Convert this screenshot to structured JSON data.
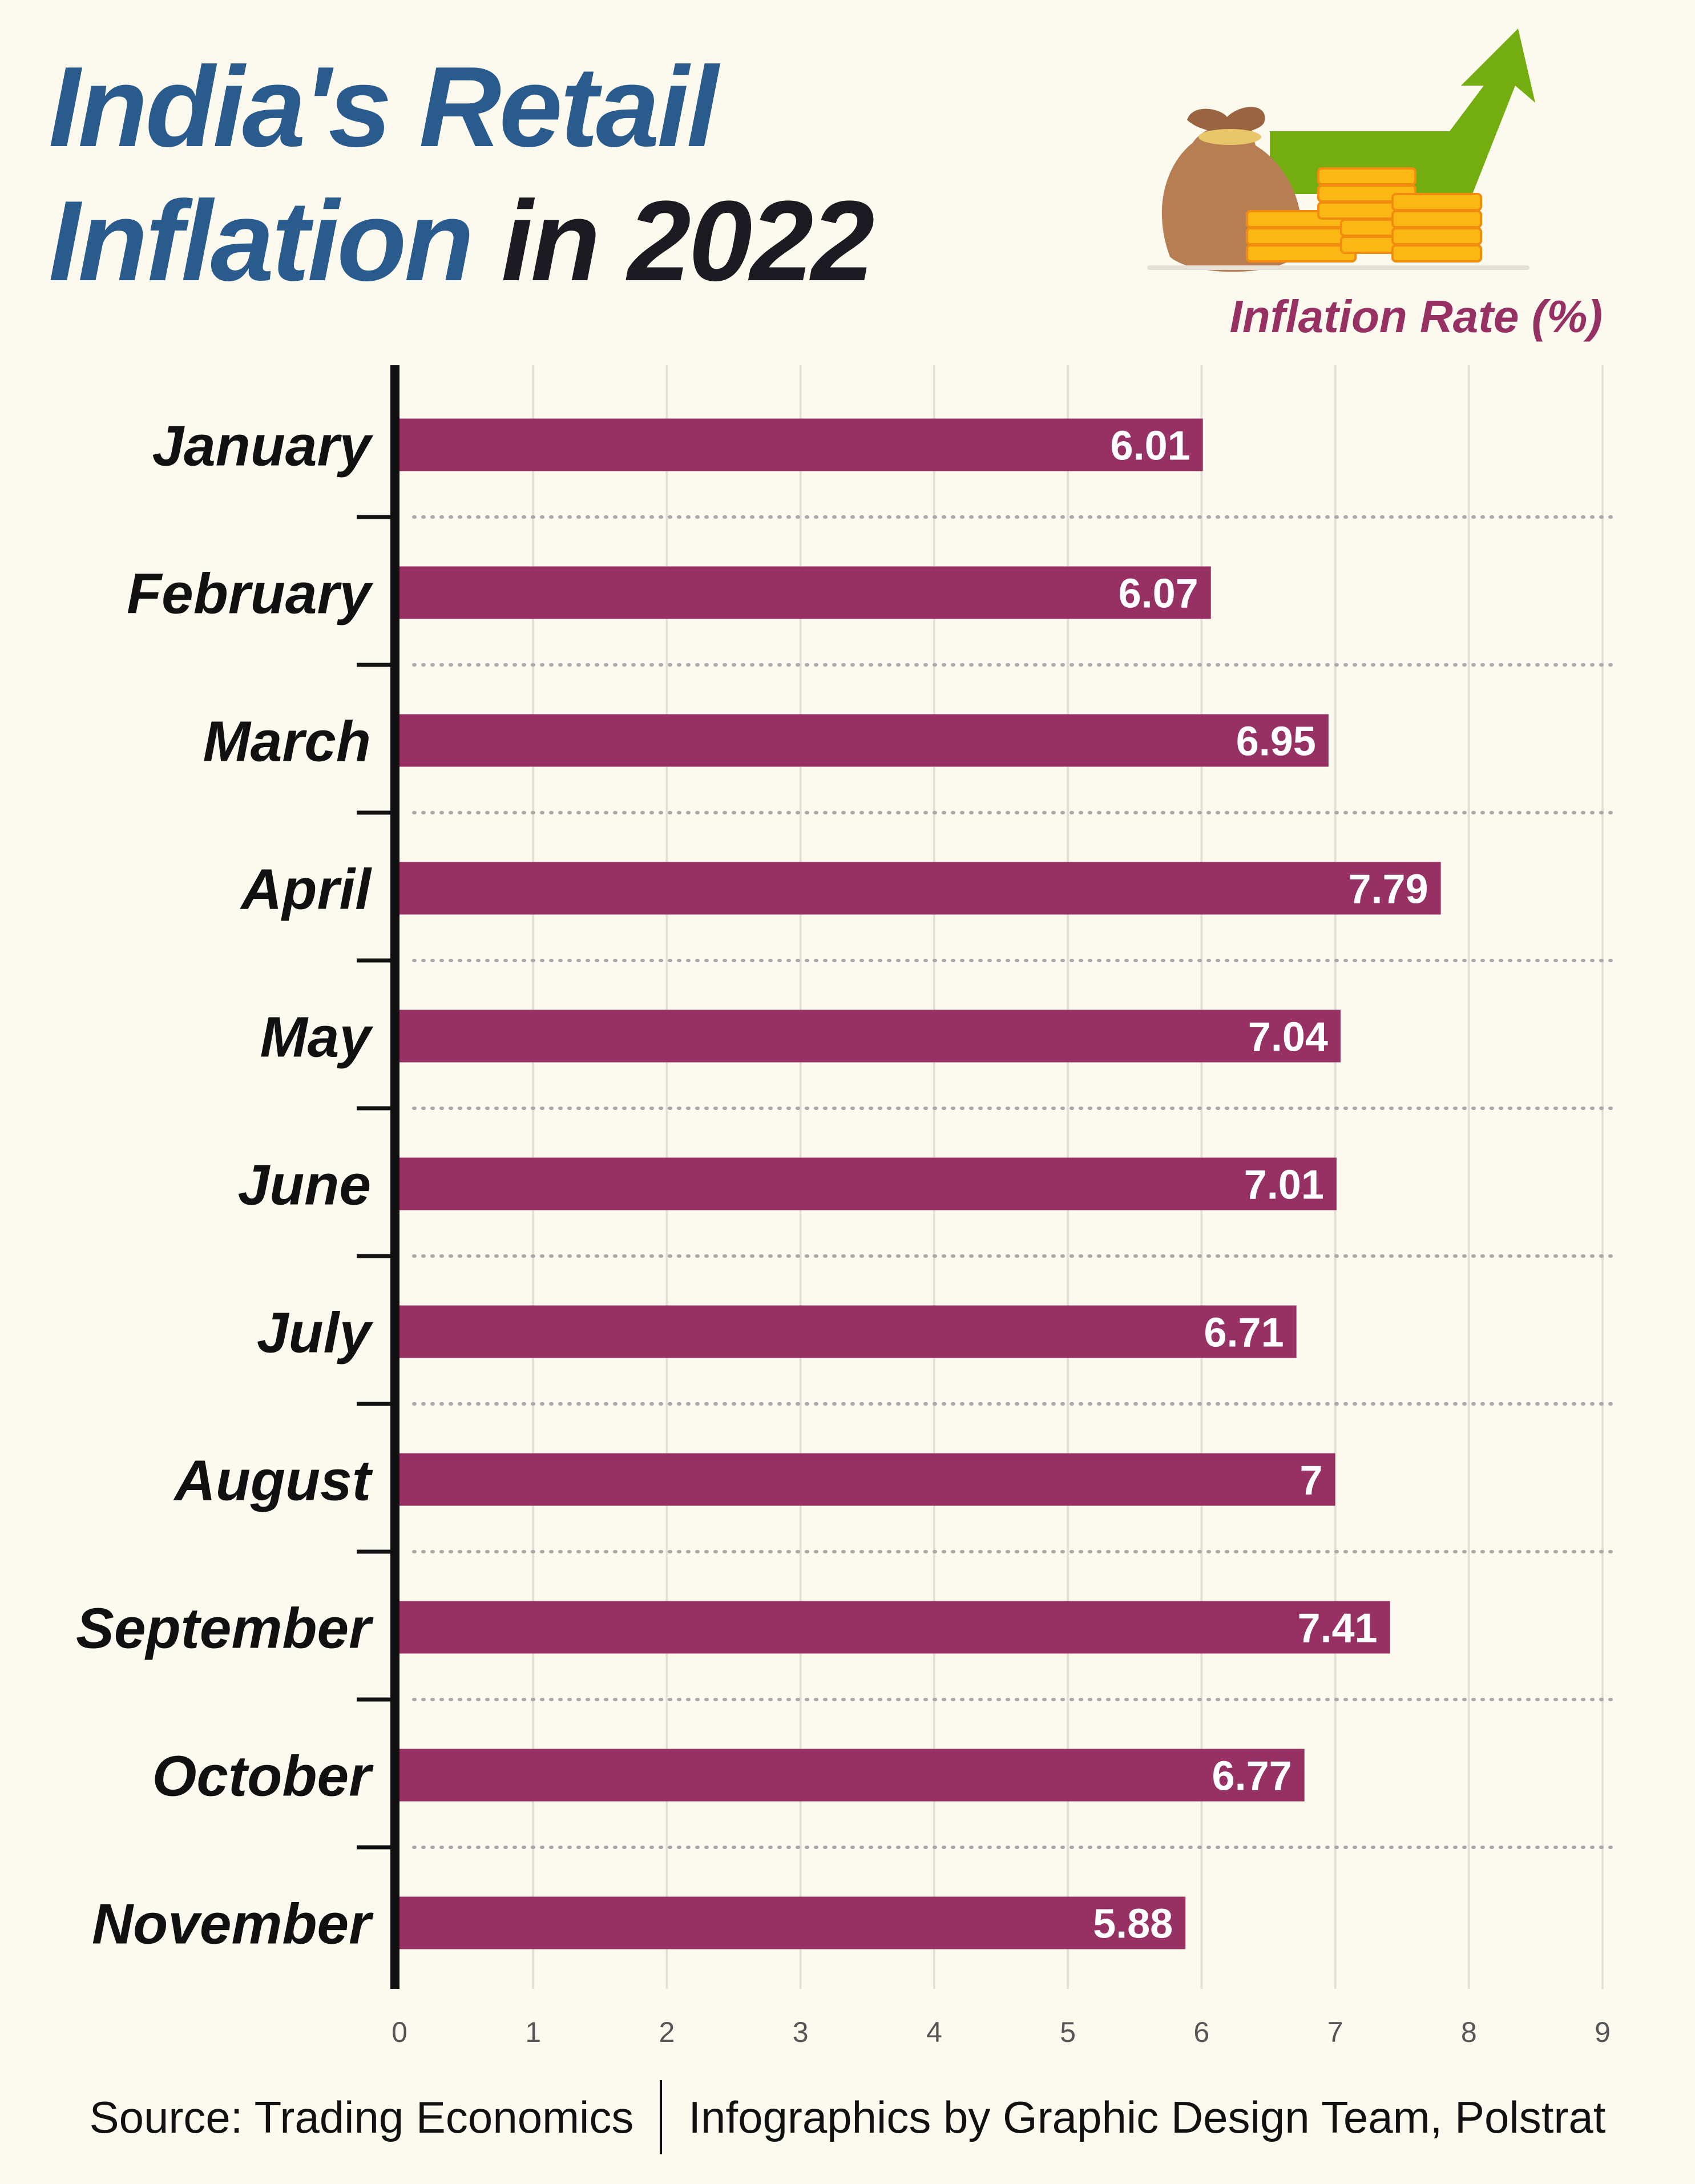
{
  "header": {
    "title_line1": "India's Retail",
    "title_line2_blue": "Inflation",
    "title_line2_dark": "in 2022"
  },
  "illustration": {
    "icon": "money-bag-coins-rising-arrow-icon",
    "colors": {
      "arrow": "#73ad0f",
      "bag": "#b77e54",
      "coins": "#fbb713"
    }
  },
  "chart_data": {
    "type": "bar",
    "orientation": "horizontal",
    "title": "India's Retail Inflation in 2022",
    "xlabel": "Inflation Rate (%)",
    "ylabel": "",
    "categories": [
      "January",
      "February",
      "March",
      "April",
      "May",
      "June",
      "July",
      "August",
      "September",
      "October",
      "November"
    ],
    "values": [
      6.01,
      6.07,
      6.95,
      7.79,
      7.04,
      7.01,
      6.71,
      7,
      7.41,
      6.77,
      5.88
    ],
    "value_labels": [
      "6.01",
      "6.07",
      "6.95",
      "7.79",
      "7.04",
      "7.01",
      "6.71",
      "7",
      "7.41",
      "6.77",
      "5.88"
    ],
    "xlim": [
      0,
      9
    ],
    "xticks": [
      "0",
      "1",
      "2",
      "3",
      "4",
      "5",
      "6",
      "7",
      "8",
      "9"
    ],
    "grid": true,
    "bar_color": "#983163",
    "value_label_color": "#ffffff"
  },
  "footer": {
    "source": "Source: Trading Economics",
    "credit": "Infographics by Graphic Design Team, Polstrat"
  }
}
